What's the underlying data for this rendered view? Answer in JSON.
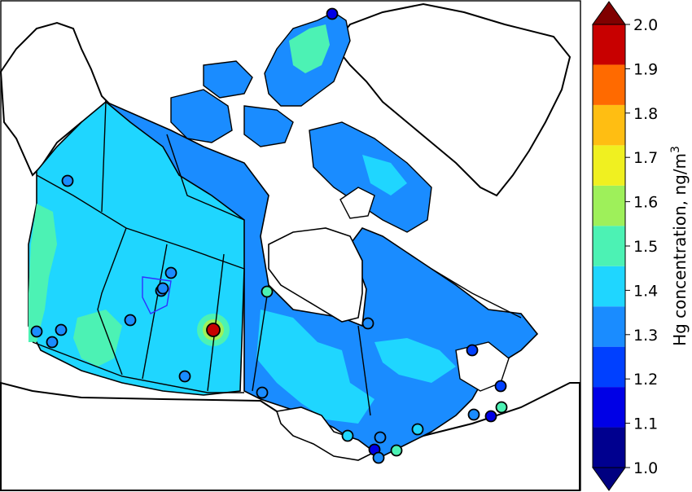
{
  "colorbar": {
    "label_main": "Hg concentration,  ng/m",
    "label_sup": "3",
    "ticks": [
      "1.0",
      "1.1",
      "1.2",
      "1.3",
      "1.4",
      "1.5",
      "1.6",
      "1.7",
      "1.8",
      "1.9",
      "2.0"
    ],
    "bin_colors": [
      "#00008f",
      "#0000e6",
      "#0040ff",
      "#1a8cff",
      "#1fd6ff",
      "#4cf2b4",
      "#9ef05a",
      "#f0f020",
      "#ffbe12",
      "#ff6a00",
      "#c80000"
    ],
    "under_color": "#000080",
    "over_color": "#800000"
  },
  "map": {
    "land_colors": {
      "blue": "#1a8cff",
      "cyan": "#1fd6ff",
      "green": "#4cf2b4",
      "water": "#ffffff",
      "outside": "#ffffff"
    },
    "stations": [
      {
        "id": "alert",
        "value": 1.15
      },
      {
        "id": "yukon",
        "value": 1.35
      },
      {
        "id": "ab-north",
        "value": 1.35
      },
      {
        "id": "ab-fortmcmurray-1",
        "value": 1.35
      },
      {
        "id": "ab-fortmcmurray-2",
        "value": 1.35
      },
      {
        "id": "ab-central",
        "value": 1.35
      },
      {
        "id": "bc-1",
        "value": 1.35
      },
      {
        "id": "bc-2",
        "value": 1.35
      },
      {
        "id": "bc-3",
        "value": 1.35
      },
      {
        "id": "sk-hotspot",
        "value": 2.0
      },
      {
        "id": "sk-south",
        "value": 1.35
      },
      {
        "id": "mb-south",
        "value": 1.35
      },
      {
        "id": "hudson-west",
        "value": 1.55
      },
      {
        "id": "james-bay",
        "value": 1.35
      },
      {
        "id": "quebec-east",
        "value": 1.25
      },
      {
        "id": "nb",
        "value": 1.15
      },
      {
        "id": "ns-1",
        "value": 1.55
      },
      {
        "id": "ns-2",
        "value": 1.25
      },
      {
        "id": "ns-3",
        "value": 1.35
      },
      {
        "id": "on-1",
        "value": 1.45
      },
      {
        "id": "on-2",
        "value": 1.35
      },
      {
        "id": "on-3",
        "value": 1.15
      },
      {
        "id": "on-4",
        "value": 1.55
      },
      {
        "id": "on-5",
        "value": 1.45
      },
      {
        "id": "on-6",
        "value": 1.35
      }
    ]
  }
}
